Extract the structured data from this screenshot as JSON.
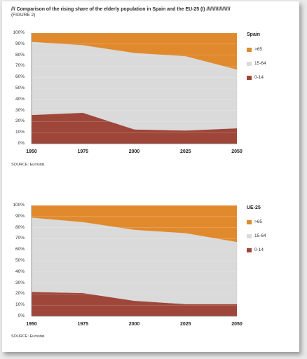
{
  "header": {
    "title": "/// Comparison of the rising share of the elderly population in Spain and the EU-25 (I) //////////////////",
    "subtitle": "(FIGURE 2)"
  },
  "colors": {
    "over65": "#e08a2d",
    "age15_64": "#dadada",
    "age0_14": "#9e4639"
  },
  "chart_data": [
    {
      "type": "area",
      "stacked": true,
      "title": "Spain",
      "x": [
        "1950",
        "1975",
        "2000",
        "2025",
        "2050"
      ],
      "ylim": [
        0,
        100
      ],
      "yticks": [
        "0%",
        "10%",
        "20%",
        "30%",
        "40%",
        "50%",
        "60%",
        "70%",
        "80%",
        "90%",
        "100%"
      ],
      "series": [
        {
          "name": "0-14",
          "values": [
            26,
            28,
            13,
            12,
            14
          ]
        },
        {
          "name": "15-64",
          "values": [
            66,
            61,
            69,
            67,
            53
          ]
        },
        {
          "name": ">65",
          "values": [
            8,
            11,
            18,
            21,
            33
          ]
        }
      ],
      "legend": ">65, 15-64, 0-14",
      "source": "SOURCE: Eurostat."
    },
    {
      "type": "area",
      "stacked": true,
      "title": "UE-25",
      "x": [
        "1950",
        "1975",
        "2000",
        "2025",
        "2050"
      ],
      "ylim": [
        0,
        100
      ],
      "yticks": [
        "0%",
        "10%",
        "20%",
        "30%",
        "40%",
        "50%",
        "60%",
        "70%",
        "80%",
        "90%",
        "100%"
      ],
      "series": [
        {
          "name": "0-14",
          "values": [
            22,
            21,
            14,
            11,
            11
          ]
        },
        {
          "name": "15-64",
          "values": [
            67,
            64,
            64,
            64,
            56
          ]
        },
        {
          "name": ">65",
          "values": [
            11,
            15,
            22,
            25,
            33
          ]
        }
      ],
      "legend": ">65, 15-64, 0-14",
      "source": "SOURCE: Eurostat."
    }
  ]
}
